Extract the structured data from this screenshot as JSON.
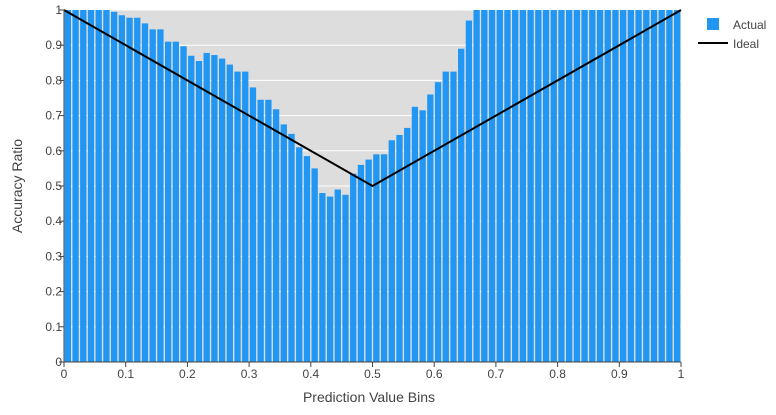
{
  "chart_data": {
    "type": "bar",
    "xlabel": "Prediction Value Bins",
    "ylabel": "Accuracy Ratio",
    "xlim": [
      0,
      1
    ],
    "ylim": [
      0,
      1
    ],
    "grid": true,
    "legend_placement": "top-right",
    "x_ticks": [
      "0",
      "0.1",
      "0.2",
      "0.3",
      "0.4",
      "0.5",
      "0.6",
      "0.7",
      "0.8",
      "0.9",
      "1"
    ],
    "y_ticks": [
      "0",
      "0.1",
      "0.2",
      "0.3",
      "0.4",
      "0.5",
      "0.6",
      "0.7",
      "0.8",
      "0.9",
      "1"
    ],
    "bin_width": 0.0125,
    "x": [
      0.00625,
      0.01875,
      0.03125,
      0.04375,
      0.05625,
      0.06875,
      0.08125,
      0.09375,
      0.10625,
      0.11875,
      0.13125,
      0.14375,
      0.15625,
      0.16875,
      0.18125,
      0.19375,
      0.20625,
      0.21875,
      0.23125,
      0.24375,
      0.25625,
      0.26875,
      0.28125,
      0.29375,
      0.30625,
      0.31875,
      0.33125,
      0.34375,
      0.35625,
      0.36875,
      0.38125,
      0.39375,
      0.40625,
      0.41875,
      0.43125,
      0.44375,
      0.45625,
      0.46875,
      0.48125,
      0.49375,
      0.50625,
      0.51875,
      0.53125,
      0.54375,
      0.55625,
      0.56875,
      0.58125,
      0.59375,
      0.60625,
      0.61875,
      0.63125,
      0.64375,
      0.65625,
      0.66875,
      0.68125,
      0.69375,
      0.70625,
      0.71875,
      0.73125,
      0.74375,
      0.75625,
      0.76875,
      0.78125,
      0.79375,
      0.80625,
      0.81875,
      0.83125,
      0.84375,
      0.85625,
      0.86875,
      0.88125,
      0.89375,
      0.90625,
      0.91875,
      0.93125,
      0.94375,
      0.95625,
      0.96875,
      0.98125,
      0.99375
    ],
    "series": [
      {
        "name": "Actual",
        "type": "bar",
        "color": "#2196f3",
        "values": [
          1.0,
          1.0,
          1.0,
          1.0,
          1.0,
          1.0,
          0.995,
          0.985,
          0.978,
          0.978,
          0.962,
          0.945,
          0.945,
          0.91,
          0.91,
          0.897,
          0.87,
          0.855,
          0.878,
          0.872,
          0.862,
          0.845,
          0.825,
          0.825,
          0.78,
          0.745,
          0.745,
          0.718,
          0.675,
          0.648,
          0.61,
          0.585,
          0.55,
          0.48,
          0.47,
          0.49,
          0.475,
          0.535,
          0.56,
          0.575,
          0.59,
          0.59,
          0.63,
          0.645,
          0.665,
          0.725,
          0.715,
          0.76,
          0.795,
          0.825,
          0.825,
          0.89,
          0.97,
          1.0,
          1.0,
          1.0,
          1.0,
          1.0,
          1.0,
          1.0,
          1.0,
          1.0,
          1.0,
          1.0,
          1.0,
          1.0,
          1.0,
          1.0,
          1.0,
          1.0,
          1.0,
          1.0,
          1.0,
          1.0,
          1.0,
          1.0,
          1.0,
          1.0,
          1.0,
          1.0
        ]
      },
      {
        "name": "Ideal",
        "type": "line",
        "color": "#000000",
        "x": [
          0,
          0.5,
          1
        ],
        "values": [
          1,
          0.5,
          1
        ]
      }
    ]
  }
}
